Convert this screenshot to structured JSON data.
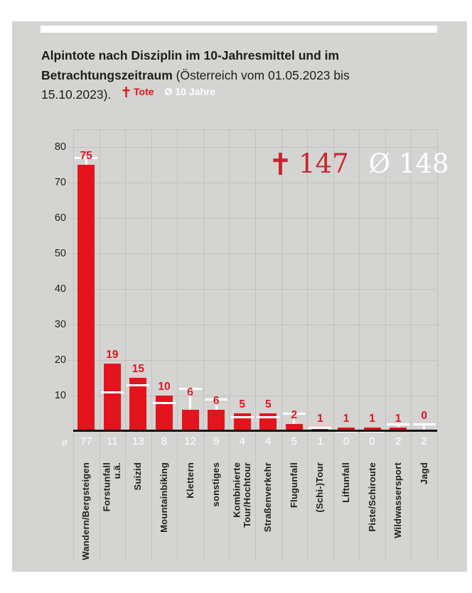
{
  "panel": {
    "background": "#d4d4d2",
    "stripe_color": "#ffffff"
  },
  "header": {
    "title_lines": [
      {
        "bold": "Alpintote nach Disziplin im 10-Jahresmittel und im",
        "regular": ""
      },
      {
        "bold": "Betrachtungszeitraum",
        "regular": " (Österreich vom 01.05.2023 bis"
      },
      {
        "bold": "",
        "regular": "15.10.2023)."
      }
    ],
    "legend": {
      "tote_label": "Tote",
      "avg_label": "Ø 10 Jahre"
    }
  },
  "summary": {
    "tote_total": "147",
    "avg_symbol": "Ø",
    "avg_total": "148"
  },
  "colors": {
    "bar_red": "#e3141e",
    "annotation_red": "#c9252d",
    "white": "#ffffff",
    "text_dark": "#1d1d1b",
    "grid": "#c3c2c0"
  },
  "chart_data": {
    "type": "bar",
    "title": "Alpintote nach Disziplin im 10-Jahresmittel und im Betrachtungszeitraum (Österreich vom 01.05.2023 bis 15.10.2023)",
    "categories": [
      "Wandern/Bergsteigen",
      "Forstunfall\nu.ä.",
      "Suizid",
      "Mountainbiking",
      "Klettern",
      "sonstiges",
      "Kombinierte\nTour/Hochtour",
      "Straßenverkehr",
      "Flugunfall",
      "(Schi-)Tour",
      "Liftunfall",
      "Piste/Schiroute",
      "Wildwassersport",
      "Jagd"
    ],
    "series": [
      {
        "name": "Tote",
        "color": "#e3141e",
        "marker": "bar",
        "values": [
          75,
          19,
          15,
          10,
          6,
          6,
          5,
          5,
          2,
          1,
          1,
          1,
          1,
          0
        ]
      },
      {
        "name": "Ø 10 Jahre",
        "color": "#ffffff",
        "marker": "dash",
        "values": [
          77,
          11,
          13,
          8,
          12,
          9,
          4,
          4,
          5,
          1,
          0,
          0,
          2,
          2
        ]
      }
    ],
    "totals": {
      "Tote": 147,
      "Ø 10 Jahre": 148
    },
    "xlabel": "",
    "ylabel": "",
    "ylim": [
      0,
      85
    ],
    "yticks": [
      10,
      20,
      30,
      40,
      50,
      60,
      70,
      80
    ],
    "avg_row_prefix": "ø",
    "grid": true,
    "legend_position": "top"
  }
}
